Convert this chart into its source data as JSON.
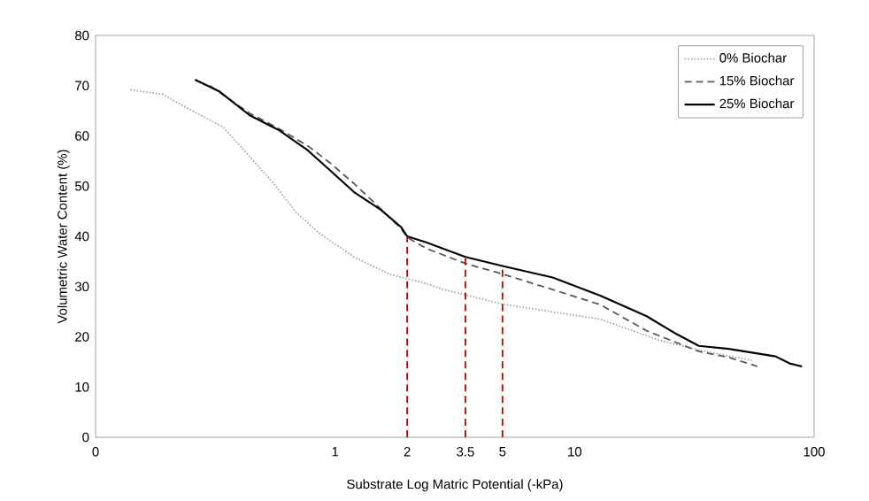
{
  "chart_data": {
    "type": "line",
    "xlabel": "Substrate Log Matric Potential (-kPa)",
    "ylabel": "Volumetric Water Content (%)",
    "log": "x",
    "xlim": [
      0.1,
      100
    ],
    "ylim": [
      0,
      80
    ],
    "xticks": [
      {
        "value": 0.1,
        "label": "0"
      },
      1,
      2,
      3.5,
      5,
      10,
      100
    ],
    "yticks": [
      0,
      10,
      20,
      30,
      40,
      50,
      60,
      70,
      80
    ],
    "grid": false,
    "legend": "top right",
    "marker": "none",
    "series": [
      {
        "name": "0% Biochar",
        "color": "#a6a6a6",
        "line_style": "dotted",
        "x": [
          0.14,
          0.19,
          0.26,
          0.34,
          0.44,
          0.55,
          0.69,
          0.86,
          1.2,
          1.7,
          2.4,
          2.8,
          5,
          12.8,
          22.3,
          35,
          55
        ],
        "values": [
          69.2,
          68.3,
          64.7,
          61.8,
          55.9,
          50.7,
          44.7,
          40.6,
          35.9,
          32.4,
          30.6,
          29.5,
          26.5,
          23.5,
          19.4,
          17.1,
          15.3
        ]
      },
      {
        "name": "15% Biochar",
        "color": "#595959",
        "line_style": "dashed",
        "x": [
          0.3,
          0.44,
          0.58,
          0.77,
          0.96,
          1.2,
          1.55,
          1.89,
          2,
          2.4,
          3.5,
          5,
          8.1,
          12.8,
          20,
          26.5,
          33,
          44,
          58
        ],
        "values": [
          70,
          64.5,
          61.5,
          58,
          54.5,
          50.5,
          45.5,
          41.5,
          39.8,
          37.6,
          34.6,
          32.5,
          29.4,
          26.4,
          21.2,
          18.9,
          17.1,
          15.9,
          14.1
        ]
      },
      {
        "name": "25% Biochar",
        "color": "#000000",
        "line_style": "solid",
        "x": [
          0.26,
          0.33,
          0.44,
          0.58,
          0.77,
          0.96,
          1.2,
          1.55,
          1.89,
          2,
          2.4,
          3.5,
          5,
          8.1,
          12.8,
          20,
          26.5,
          33,
          44,
          69,
          79,
          89
        ],
        "values": [
          71.2,
          68.8,
          64.1,
          61.2,
          57.1,
          53,
          48.8,
          45.3,
          41.8,
          40,
          38.8,
          35.9,
          34.1,
          31.8,
          28.2,
          24.1,
          20.6,
          18.2,
          17.6,
          16.1,
          14.7,
          14.1
        ]
      }
    ],
    "ref_lines": [
      {
        "axis": "x",
        "value": 2,
        "color": "#c00000",
        "line_style": "dashed"
      },
      {
        "axis": "x",
        "value": 3.5,
        "color": "#c00000",
        "line_style": "dashed"
      },
      {
        "axis": "x",
        "value": 5,
        "color": "#c00000",
        "line_style": "dashed"
      }
    ]
  }
}
